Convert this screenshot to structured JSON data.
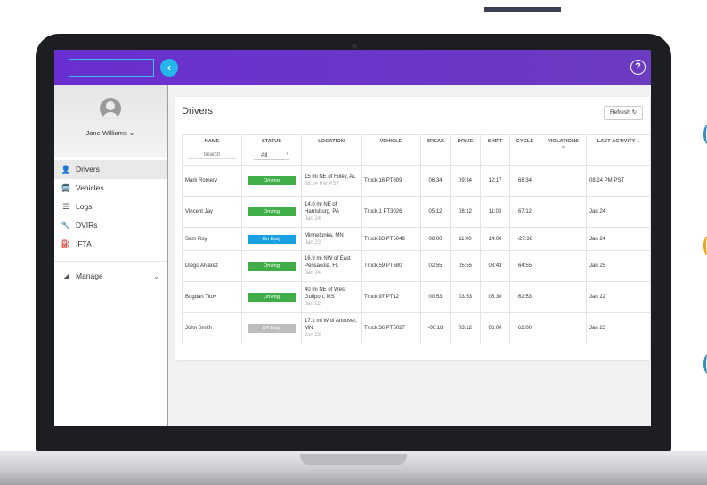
{
  "colors": {
    "appbar": "#6a2fd0",
    "accent": "#26b7ea",
    "driving": "#3fae49",
    "on_duty": "#1aa0e0",
    "off_duty": "#bdbdbd"
  },
  "header": {
    "collapse_icon": "chevron-left-icon",
    "collapse_glyph": "‹",
    "help_icon": "help-circle-icon",
    "help_glyph": "?"
  },
  "sidebar": {
    "user_name": "Jane Williams",
    "user_chevron": "⌄",
    "items": [
      {
        "label": "Drivers",
        "icon": "person-icon",
        "glyph": "👤"
      },
      {
        "label": "Vehicles",
        "icon": "bus-icon",
        "glyph": "🚍"
      },
      {
        "label": "Logs",
        "icon": "list-icon",
        "glyph": "☰"
      },
      {
        "label": "DVIRs",
        "icon": "wrench-icon",
        "glyph": "🔧"
      },
      {
        "label": "IFTA",
        "icon": "fuel-icon",
        "glyph": "⛽"
      }
    ],
    "manage": {
      "label": "Manage",
      "icon": "manage-icon",
      "glyph": "◢",
      "arrow": "⌄"
    }
  },
  "main": {
    "title": "Drivers",
    "refresh_label": "Refresh",
    "refresh_glyph": "↻",
    "columns": {
      "name": "NAME",
      "status": "STATUS",
      "location": "LOCATION",
      "vehicle": "VEHICLE",
      "break": "BREAK",
      "drive": "DRIVE",
      "shift": "SHIFT",
      "cycle": "CYCLE",
      "violations": "VIOLATIONS",
      "last_activity": "LAST ACTIVITY"
    },
    "sort_glyph": "⩦",
    "name_search_placeholder": "Search",
    "status_filter_value": "All",
    "status_filter_caret": "▾",
    "rows": [
      {
        "name": "Mark Romery",
        "status": "Driving",
        "status_kind": "driving",
        "loc": "15 mi NE of Foley, AL",
        "loc_time": "08:24 PM PST",
        "vehicle": "Truck 16 PT809",
        "break": "06:34",
        "drive": "09:34",
        "shift": "12:17",
        "cycle": "68:34",
        "violations": "",
        "last_activity": "08:24 PM PST"
      },
      {
        "name": "Vincent Jay",
        "status": "Driving",
        "status_kind": "driving",
        "loc": "14.0 mi NE of Harrisburg, PA",
        "loc_time": "Jan 24",
        "vehicle": "Truck 1 PT3026",
        "break": "05:12",
        "drive": "08:12",
        "shift": "11:03",
        "cycle": "67:12",
        "violations": "",
        "last_activity": "Jan 24"
      },
      {
        "name": "Sam Roy",
        "status": "On Duty",
        "status_kind": "on_duty",
        "loc": "Minnetonka, MN",
        "loc_time": "Jan 23",
        "vehicle": "Truck 83 PT5049",
        "break": "08:00",
        "drive": "11:00",
        "shift": "14:00",
        "cycle": "-27:36",
        "violations": "",
        "last_activity": "Jan 24"
      },
      {
        "name": "Diego Alvarez",
        "status": "Driving",
        "status_kind": "driving",
        "loc": "16.9 mi NW of East Pensacola, FL",
        "loc_time": "Jan 24",
        "vehicle": "Truck 59 PT680",
        "break": "02:55",
        "drive": "05:55",
        "shift": "08:43",
        "cycle": "64:55",
        "violations": "",
        "last_activity": "Jan 25"
      },
      {
        "name": "Bogdan Titov",
        "status": "Driving",
        "status_kind": "driving",
        "loc": "40 mi NE of West Gulfport, MS",
        "loc_time": "Jan 22",
        "vehicle": "Truck 97 PT12",
        "break": "00:53",
        "drive": "03:53",
        "shift": "06:30",
        "cycle": "62:53",
        "violations": "",
        "last_activity": "Jan 22"
      },
      {
        "name": "John Smith",
        "status": "Off Duty",
        "status_kind": "off_duty",
        "loc": "17.1 mi W of Andover, MN",
        "loc_time": "Jan 23",
        "vehicle": "Truck 36 PT5027",
        "break": "-00:18",
        "drive": "03:12",
        "shift": "06:00",
        "cycle": "62:00",
        "violations": "",
        "last_activity": "Jan 23"
      }
    ]
  }
}
